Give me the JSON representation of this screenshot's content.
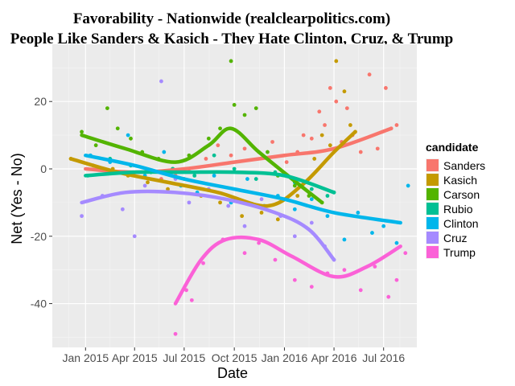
{
  "chart_data": {
    "type": "scatter",
    "title": "Favorability - Nationwide (realclearpolitics.com)",
    "subtitle": "People Like Sanders & Kasich - They Hate Clinton, Cruz, & Trump",
    "xlabel": "Date",
    "ylabel": "Net (Yes - No)",
    "x_ticks": [
      "Jan 2015",
      "Apr 2015",
      "Jul 2015",
      "Oct 2015",
      "Jan 2016",
      "Apr 2016",
      "Jul 2016"
    ],
    "y_ticks": [
      20,
      0,
      -20,
      -40
    ],
    "x_range": [
      "2014-11-01",
      "2016-08-31"
    ],
    "ylim": [
      -53,
      37
    ],
    "grid": true,
    "legend_title": "candidate",
    "legend_position": "right",
    "series": [
      {
        "name": "Sanders",
        "color": "#F8766D",
        "trend": [
          [
            "2015-01-01",
            0
          ],
          [
            "2015-04-01",
            -1
          ],
          [
            "2015-07-01",
            0
          ],
          [
            "2015-10-01",
            2
          ],
          [
            "2016-01-01",
            4
          ],
          [
            "2016-04-01",
            6
          ],
          [
            "2016-07-15",
            12
          ]
        ],
        "points": [
          [
            "2015-05-20",
            -3
          ],
          [
            "2015-06-15",
            -2
          ],
          [
            "2015-07-10",
            0
          ],
          [
            "2015-08-10",
            3
          ],
          [
            "2015-09-01",
            7
          ],
          [
            "2015-09-25",
            4
          ],
          [
            "2015-10-20",
            6
          ],
          [
            "2015-11-15",
            5
          ],
          [
            "2015-12-10",
            8
          ],
          [
            "2016-01-05",
            2
          ],
          [
            "2016-01-25",
            5
          ],
          [
            "2016-02-05",
            10
          ],
          [
            "2016-02-20",
            9
          ],
          [
            "2016-03-05",
            17
          ],
          [
            "2016-03-15",
            13
          ],
          [
            "2016-03-25",
            24
          ],
          [
            "2016-04-05",
            20
          ],
          [
            "2016-04-15",
            8
          ],
          [
            "2016-04-25",
            18
          ],
          [
            "2016-05-05",
            10
          ],
          [
            "2016-05-20",
            5
          ],
          [
            "2016-06-05",
            28
          ],
          [
            "2016-06-20",
            6
          ],
          [
            "2016-07-05",
            24
          ],
          [
            "2016-07-15",
            12
          ],
          [
            "2016-07-25",
            13
          ]
        ]
      },
      {
        "name": "Kasich",
        "color": "#C49A00",
        "trend": [
          [
            "2014-12-05",
            3
          ],
          [
            "2015-03-01",
            -1
          ],
          [
            "2015-06-01",
            -4
          ],
          [
            "2015-09-01",
            -7
          ],
          [
            "2015-12-01",
            -11
          ],
          [
            "2016-02-01",
            -5
          ],
          [
            "2016-04-01",
            5
          ],
          [
            "2016-05-10",
            11
          ]
        ],
        "points": [
          [
            "2014-12-05",
            3
          ],
          [
            "2015-01-15",
            1
          ],
          [
            "2015-02-20",
            0
          ],
          [
            "2015-03-20",
            -2
          ],
          [
            "2015-04-25",
            -4
          ],
          [
            "2015-06-01",
            -6
          ],
          [
            "2015-07-01",
            -3
          ],
          [
            "2015-08-01",
            -8
          ],
          [
            "2015-09-05",
            -10
          ],
          [
            "2015-10-15",
            -14
          ],
          [
            "2015-11-20",
            -13
          ],
          [
            "2015-12-20",
            -15
          ],
          [
            "2016-01-25",
            -8
          ],
          [
            "2016-02-25",
            3
          ],
          [
            "2016-03-10",
            10
          ],
          [
            "2016-03-25",
            7
          ],
          [
            "2016-04-05",
            32
          ],
          [
            "2016-04-20",
            23
          ],
          [
            "2016-05-01",
            13
          ],
          [
            "2016-05-10",
            11
          ]
        ]
      },
      {
        "name": "Carson",
        "color": "#53B400",
        "trend": [
          [
            "2014-12-25",
            10
          ],
          [
            "2015-03-15",
            6
          ],
          [
            "2015-06-15",
            2
          ],
          [
            "2015-08-15",
            7
          ],
          [
            "2015-09-25",
            12
          ],
          [
            "2015-11-15",
            5
          ],
          [
            "2016-01-15",
            -3
          ],
          [
            "2016-03-10",
            -10
          ]
        ],
        "points": [
          [
            "2014-12-25",
            11
          ],
          [
            "2015-01-20",
            7
          ],
          [
            "2015-02-10",
            18
          ],
          [
            "2015-03-01",
            12
          ],
          [
            "2015-03-25",
            9
          ],
          [
            "2015-04-15",
            5
          ],
          [
            "2015-05-15",
            3
          ],
          [
            "2015-06-10",
            0
          ],
          [
            "2015-07-10",
            4
          ],
          [
            "2015-08-15",
            9
          ],
          [
            "2015-09-05",
            12
          ],
          [
            "2015-09-25",
            32
          ],
          [
            "2015-10-01",
            19
          ],
          [
            "2015-10-20",
            16
          ],
          [
            "2015-11-10",
            18
          ],
          [
            "2015-12-01",
            5
          ],
          [
            "2015-12-20",
            -2
          ],
          [
            "2016-01-20",
            -5
          ],
          [
            "2016-02-15",
            -8
          ],
          [
            "2016-03-10",
            -10
          ]
        ]
      },
      {
        "name": "Rubio",
        "color": "#00C094",
        "trend": [
          [
            "2015-01-01",
            -2
          ],
          [
            "2015-04-01",
            -1
          ],
          [
            "2015-07-01",
            -1
          ],
          [
            "2015-10-01",
            -1
          ],
          [
            "2016-01-01",
            -2
          ],
          [
            "2016-04-01",
            -7
          ]
        ],
        "points": [
          [
            "2015-01-05",
            -2
          ],
          [
            "2015-02-15",
            3
          ],
          [
            "2015-03-25",
            1
          ],
          [
            "2015-05-01",
            -1
          ],
          [
            "2015-06-10",
            0
          ],
          [
            "2015-07-20",
            -2
          ],
          [
            "2015-08-25",
            4
          ],
          [
            "2015-10-01",
            0
          ],
          [
            "2015-11-10",
            -3
          ],
          [
            "2015-12-15",
            -1
          ],
          [
            "2016-01-20",
            -4
          ],
          [
            "2016-02-20",
            -6
          ],
          [
            "2016-03-20",
            -8
          ],
          [
            "2016-04-01",
            -7
          ]
        ]
      },
      {
        "name": "Clinton",
        "color": "#00B6EB",
        "trend": [
          [
            "2015-01-01",
            4
          ],
          [
            "2015-04-01",
            1
          ],
          [
            "2015-07-01",
            -3
          ],
          [
            "2015-10-01",
            -6
          ],
          [
            "2016-01-01",
            -9
          ],
          [
            "2016-04-01",
            -13
          ],
          [
            "2016-08-01",
            -16
          ]
        ],
        "points": [
          [
            "2015-01-10",
            4
          ],
          [
            "2015-02-15",
            2
          ],
          [
            "2015-03-20",
            10
          ],
          [
            "2015-04-20",
            -2
          ],
          [
            "2015-05-25",
            5
          ],
          [
            "2015-06-25",
            -5
          ],
          [
            "2015-07-25",
            -7
          ],
          [
            "2015-08-25",
            -2
          ],
          [
            "2015-09-25",
            -10
          ],
          [
            "2015-10-25",
            -3
          ],
          [
            "2015-11-25",
            -11
          ],
          [
            "2015-12-20",
            -8
          ],
          [
            "2016-01-20",
            -12
          ],
          [
            "2016-02-20",
            -9
          ],
          [
            "2016-03-20",
            -14
          ],
          [
            "2016-04-20",
            -21
          ],
          [
            "2016-05-15",
            -13
          ],
          [
            "2016-06-10",
            -19
          ],
          [
            "2016-07-01",
            -17
          ],
          [
            "2016-07-25",
            -22
          ],
          [
            "2016-08-15",
            -5
          ]
        ]
      },
      {
        "name": "Cruz",
        "color": "#A58AFF",
        "trend": [
          [
            "2014-12-25",
            -10
          ],
          [
            "2015-03-15",
            -7
          ],
          [
            "2015-06-15",
            -7
          ],
          [
            "2015-09-15",
            -9
          ],
          [
            "2015-12-15",
            -13
          ],
          [
            "2016-02-15",
            -18
          ],
          [
            "2016-04-01",
            -27
          ]
        ],
        "points": [
          [
            "2014-12-25",
            -14
          ],
          [
            "2015-02-01",
            -8
          ],
          [
            "2015-03-10",
            -12
          ],
          [
            "2015-04-01",
            -20
          ],
          [
            "2015-04-20",
            -5
          ],
          [
            "2015-05-20",
            26
          ],
          [
            "2015-06-15",
            -3
          ],
          [
            "2015-07-10",
            -10
          ],
          [
            "2015-08-15",
            -6
          ],
          [
            "2015-09-20",
            -11
          ],
          [
            "2015-10-20",
            -17
          ],
          [
            "2015-11-20",
            -9
          ],
          [
            "2015-12-25",
            -14
          ],
          [
            "2016-01-20",
            -20
          ],
          [
            "2016-02-20",
            -16
          ],
          [
            "2016-03-15",
            -23
          ],
          [
            "2016-04-01",
            -27
          ]
        ]
      },
      {
        "name": "Trump",
        "color": "#FB61D7",
        "trend": [
          [
            "2015-06-15",
            -40
          ],
          [
            "2015-08-01",
            -27
          ],
          [
            "2015-09-15",
            -21
          ],
          [
            "2015-11-15",
            -21
          ],
          [
            "2016-01-15",
            -26
          ],
          [
            "2016-04-01",
            -32
          ],
          [
            "2016-06-01",
            -29
          ],
          [
            "2016-08-01",
            -23
          ]
        ],
        "points": [
          [
            "2015-06-15",
            -49
          ],
          [
            "2015-07-05",
            -36
          ],
          [
            "2015-07-15",
            -39
          ],
          [
            "2015-08-05",
            -28
          ],
          [
            "2015-09-10",
            -21
          ],
          [
            "2015-10-20",
            -25
          ],
          [
            "2015-11-15",
            -22
          ],
          [
            "2015-12-15",
            -27
          ],
          [
            "2016-01-20",
            -33
          ],
          [
            "2016-02-20",
            -35
          ],
          [
            "2016-03-20",
            -31
          ],
          [
            "2016-04-20",
            -30
          ],
          [
            "2016-05-20",
            -36
          ],
          [
            "2016-06-15",
            -29
          ],
          [
            "2016-07-10",
            -38
          ],
          [
            "2016-07-25",
            -33
          ],
          [
            "2016-08-10",
            -25
          ]
        ]
      }
    ]
  }
}
